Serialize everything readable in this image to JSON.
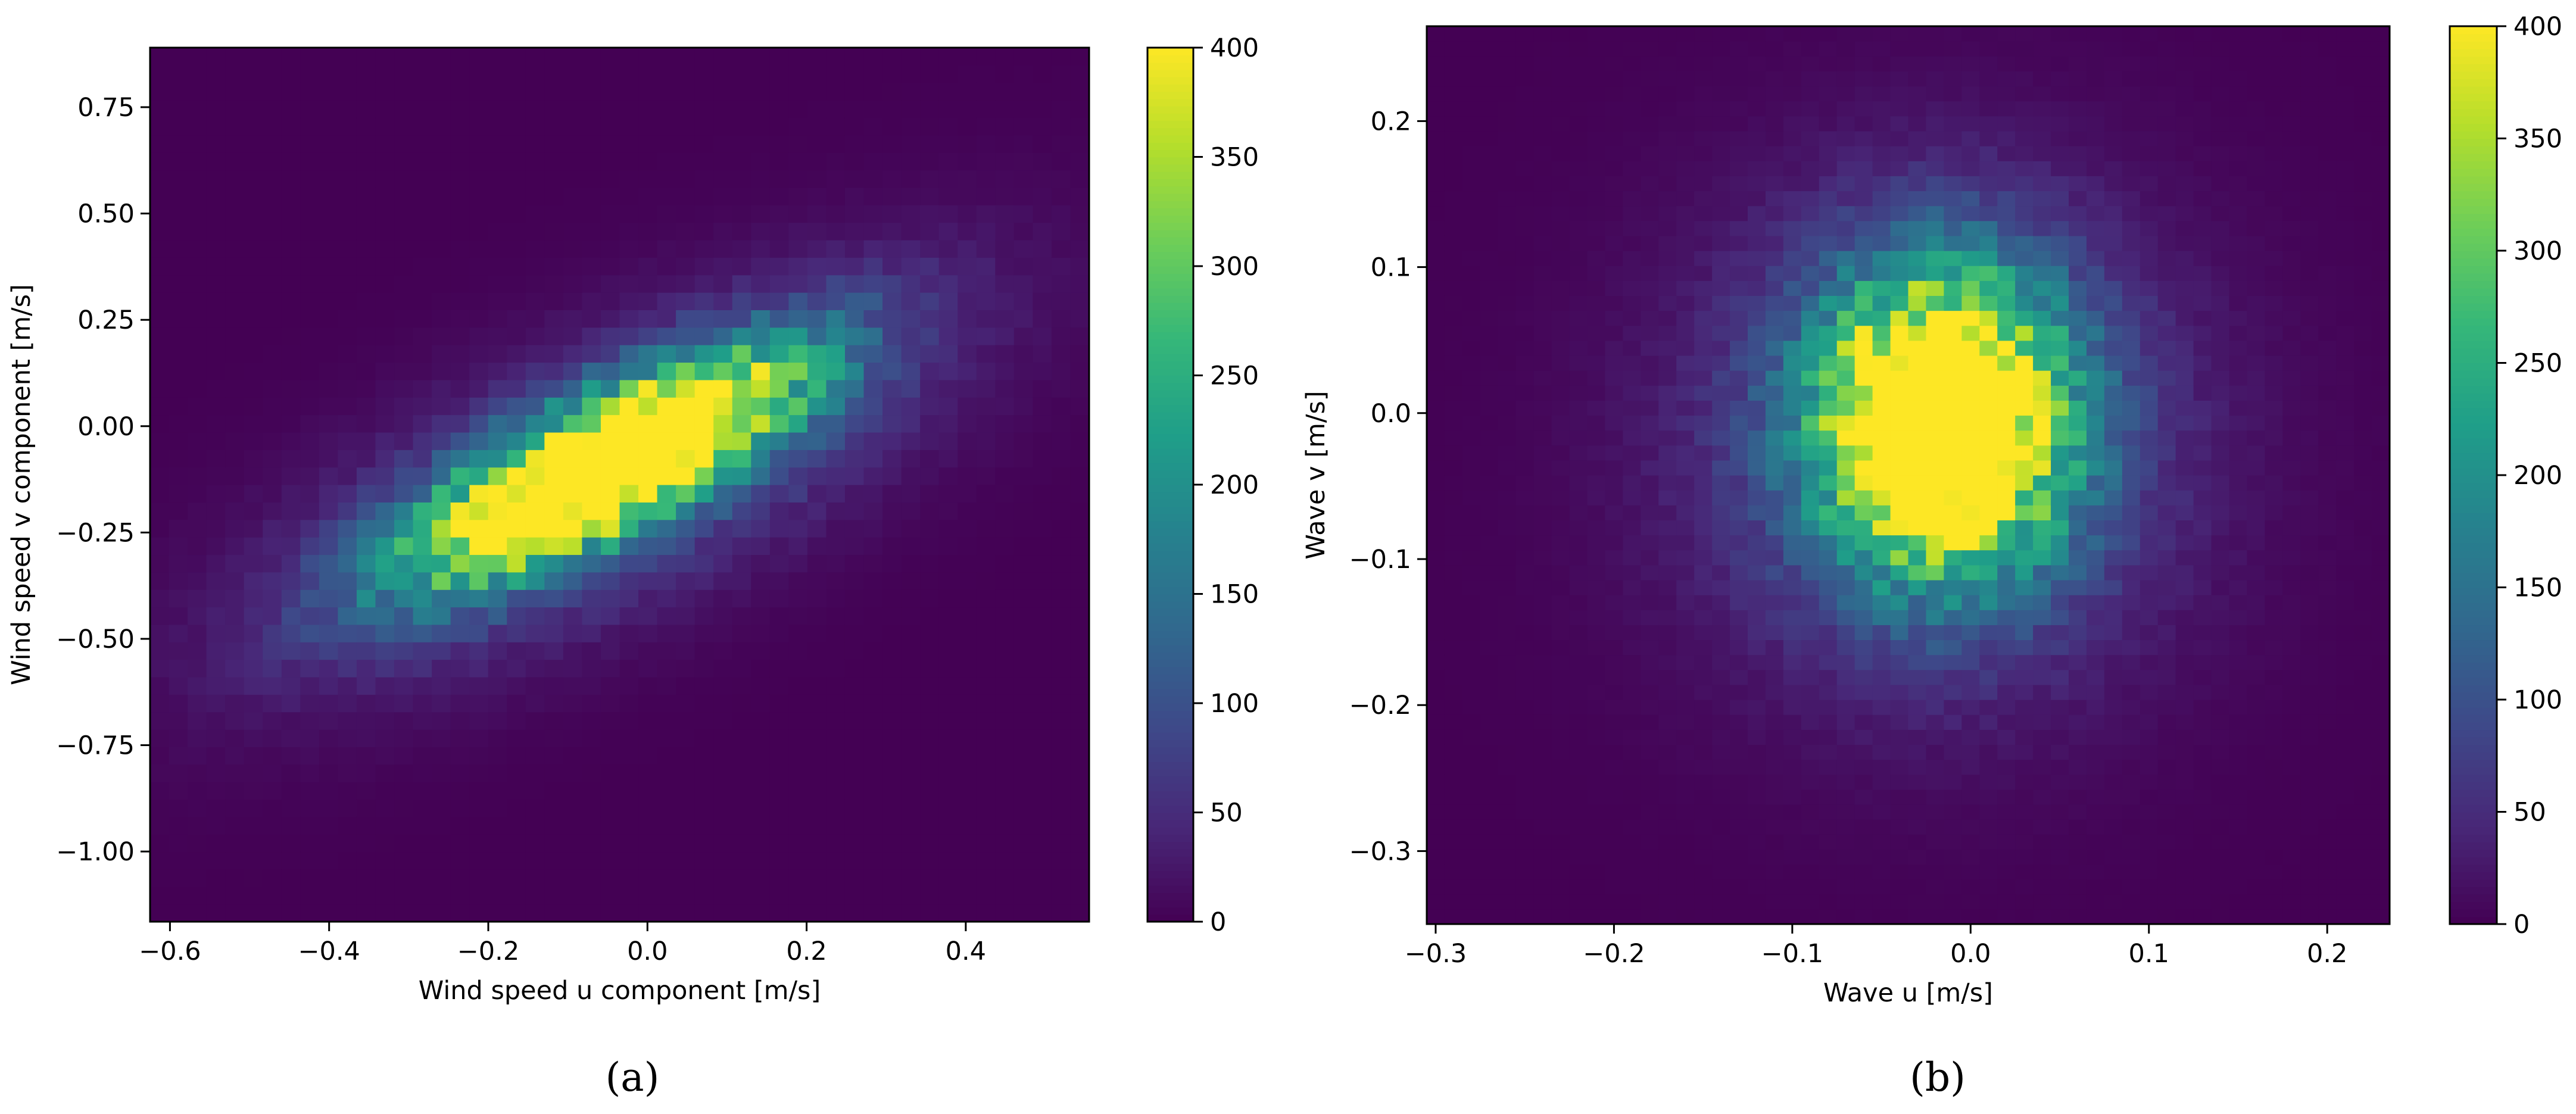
{
  "colors": {
    "viridis": [
      "#440154",
      "#482878",
      "#3e4989",
      "#31688e",
      "#26828e",
      "#1f9e89",
      "#35b779",
      "#6ece58",
      "#b5de2b",
      "#fde725"
    ]
  },
  "chart_data": [
    {
      "type": "heatmap",
      "panel_label": "(a)",
      "xlabel": "Wind speed u component [m/s]",
      "ylabel": "Wind speed v component [m/s]",
      "xlim": [
        -0.625,
        0.555
      ],
      "ylim": [
        -1.165,
        0.89
      ],
      "xticks": [
        -0.6,
        -0.4,
        -0.2,
        0.0,
        0.2,
        0.4
      ],
      "xtick_labels": [
        "−0.6",
        "−0.4",
        "−0.2",
        "0.0",
        "0.2",
        "0.4"
      ],
      "yticks": [
        -1.0,
        -0.75,
        -0.5,
        -0.25,
        0.0,
        0.25,
        0.5,
        0.75
      ],
      "ytick_labels": [
        "−1.00",
        "−0.75",
        "−0.50",
        "−0.25",
        "0.00",
        "0.25",
        "0.50",
        "0.75"
      ],
      "bins": [
        50,
        50
      ],
      "color_range": [
        0,
        400
      ],
      "colorbar_ticks": [
        0,
        50,
        100,
        150,
        200,
        250,
        300,
        350,
        400
      ],
      "colorbar_tick_labels": [
        "0",
        "50",
        "100",
        "150",
        "200",
        "250",
        "300",
        "350",
        "400"
      ],
      "density": {
        "core": {
          "center": [
            -0.05,
            -0.09
          ],
          "major_axis_angle_deg": 48,
          "semi_axes": [
            0.42,
            0.14
          ],
          "peak_count": 400
        },
        "halo": {
          "center": [
            -0.05,
            -0.12
          ],
          "major_axis_angle_deg": 48,
          "semi_axes": [
            0.78,
            0.33
          ],
          "peak_count": 120
        }
      }
    },
    {
      "type": "heatmap",
      "panel_label": "(b)",
      "xlabel": "Wave  u [m/s]",
      "ylabel": "Wave v [m/s]",
      "xlim": [
        -0.305,
        0.235
      ],
      "ylim": [
        -0.35,
        0.265
      ],
      "xticks": [
        -0.3,
        -0.2,
        -0.1,
        0.0,
        0.1,
        0.2
      ],
      "xtick_labels": [
        "−0.3",
        "−0.2",
        "−0.1",
        "0.0",
        "0.1",
        "0.2"
      ],
      "yticks": [
        -0.3,
        -0.2,
        -0.1,
        0.0,
        0.1,
        0.2
      ],
      "ytick_labels": [
        "−0.3",
        "−0.2",
        "−0.1",
        "0.0",
        "0.1",
        "0.2"
      ],
      "bins": [
        54,
        60
      ],
      "color_range": [
        0,
        400
      ],
      "colorbar_ticks": [
        0,
        50,
        100,
        150,
        200,
        250,
        300,
        350,
        400
      ],
      "colorbar_tick_labels": [
        "0",
        "50",
        "100",
        "150",
        "200",
        "250",
        "300",
        "350",
        "400"
      ],
      "density": {
        "core": {
          "center": [
            -0.015,
            -0.005
          ],
          "semi_axes": [
            0.085,
            0.125
          ],
          "peak_count": 400
        },
        "halo": {
          "center": [
            -0.02,
            -0.02
          ],
          "semi_axes": [
            0.2,
            0.24
          ],
          "peak_count": 110
        }
      }
    }
  ]
}
